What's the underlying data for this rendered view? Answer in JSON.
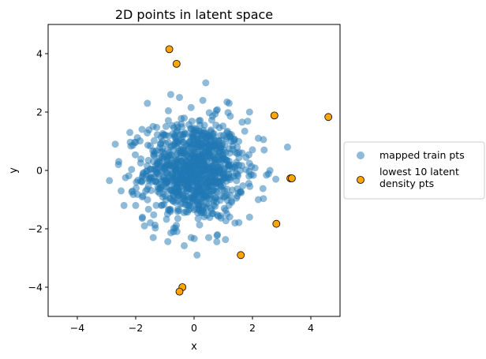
{
  "chart_data": {
    "type": "scatter",
    "title": "2D points in latent space",
    "xlabel": "x",
    "ylabel": "y",
    "xlim": [
      -5,
      5
    ],
    "ylim": [
      -5,
      5
    ],
    "xticks": [
      -4,
      -2,
      0,
      2,
      4
    ],
    "yticks": [
      -4,
      -2,
      0,
      2,
      4
    ],
    "xtick_labels": [
      "−4",
      "−2",
      "0",
      "2",
      "4"
    ],
    "ytick_labels": [
      "−4",
      "−2",
      "0",
      "2",
      "4"
    ],
    "grid": false,
    "legend_position": "center-left outside plot",
    "series": [
      {
        "name": "mapped train pts",
        "color": "#1f77b4",
        "alpha": 0.5,
        "distribution": {
          "n": 1000,
          "center": [
            0,
            0
          ],
          "std": 0.85
        },
        "outer_points": [
          [
            0.4,
            3.0
          ],
          [
            -0.8,
            2.6
          ],
          [
            -1.6,
            2.3
          ],
          [
            -0.5,
            2.5
          ],
          [
            0.3,
            2.4
          ],
          [
            1.2,
            2.3
          ],
          [
            1.9,
            2.0
          ],
          [
            -2.2,
            1.3
          ],
          [
            2.2,
            1.1
          ],
          [
            -2.7,
            0.9
          ],
          [
            2.4,
            0.7
          ],
          [
            3.2,
            0.8
          ],
          [
            -2.9,
            -0.35
          ],
          [
            -2.5,
            -0.7
          ],
          [
            2.8,
            -0.3
          ],
          [
            2.6,
            0.0
          ],
          [
            -2.4,
            -1.2
          ],
          [
            2.2,
            -1.0
          ],
          [
            -1.7,
            -1.9
          ],
          [
            -0.7,
            -2.1
          ],
          [
            0.1,
            -2.9
          ],
          [
            -0.1,
            -2.3
          ],
          [
            1.4,
            -1.8
          ],
          [
            1.9,
            -1.6
          ],
          [
            -2.0,
            -1.2
          ],
          [
            0.8,
            -2.2
          ],
          [
            -1.4,
            -2.3
          ],
          [
            0.5,
            -2.3
          ]
        ]
      },
      {
        "name": "lowest 10 latent density pts",
        "color": "#ffa500",
        "edgecolor": "#000000",
        "points": [
          [
            -0.85,
            4.15
          ],
          [
            -0.6,
            3.65
          ],
          [
            2.75,
            1.88
          ],
          [
            4.6,
            1.83
          ],
          [
            3.3,
            -0.27
          ],
          [
            3.35,
            -0.27
          ],
          [
            2.82,
            -1.83
          ],
          [
            1.6,
            -2.9
          ],
          [
            -0.4,
            -4.0
          ],
          [
            -0.5,
            -4.15
          ]
        ]
      }
    ]
  }
}
